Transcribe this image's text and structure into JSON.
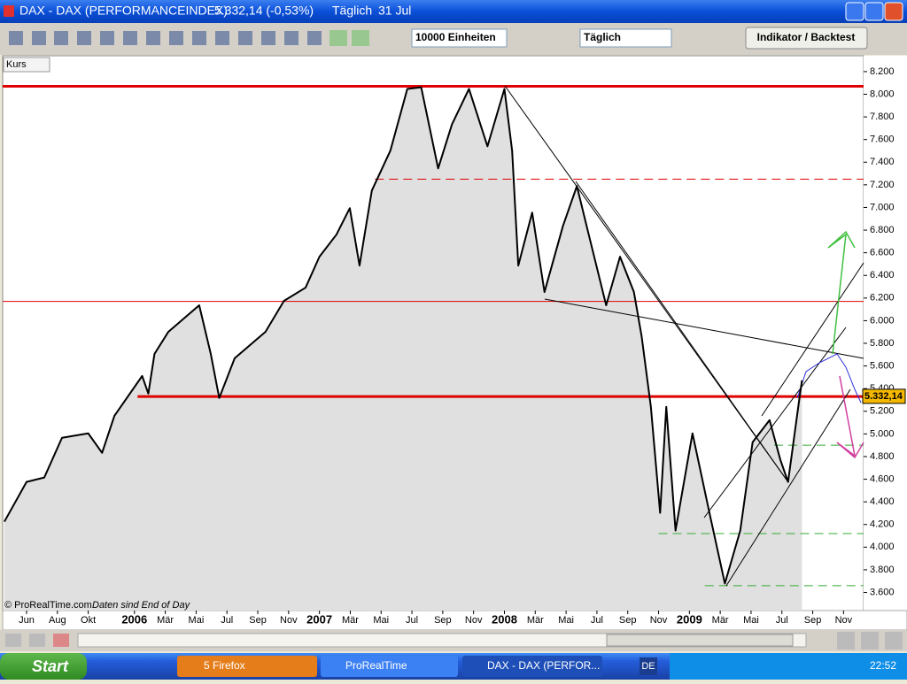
{
  "window": {
    "title": "DAX - DAX (PERFORMANCEINDEX)",
    "quote": "5.332,14 (-0,53%)",
    "period": "Täglich",
    "date": "31 Jul"
  },
  "toolbar": {
    "units": "10000 Einheiten",
    "interval": "Täglich",
    "button": "Indikator / Backtest"
  },
  "chart_data": {
    "type": "line",
    "panel_label": "Kurs",
    "footer": "© ProRealTime.com",
    "footer_note": "Daten sind End of Day",
    "x": [
      -1.44,
      0,
      1.15,
      2.3,
      4.0,
      4.9,
      5.7,
      7.5,
      7.9,
      8.3,
      9.2,
      11.2,
      11.95,
      12.5,
      13.5,
      15.5,
      16.7,
      18.1,
      19.0,
      20.1,
      20.97,
      21.6,
      22.4,
      23.6,
      24.7,
      25.6,
      26.7,
      27.6,
      28.7,
      29.9,
      31.0,
      31.5,
      31.9,
      32.8,
      33.6,
      34.8,
      35.7,
      36.4,
      37.6,
      38.5,
      39.4,
      39.9,
      40.5,
      41.1,
      41.5,
      42.1,
      43.2,
      44.3,
      45.3,
      46.3,
      47.1,
      48.2,
      48.9,
      49.4,
      50.1,
      50.3
    ],
    "values": [
      4225,
      4576,
      4615,
      4966,
      5005,
      4833,
      5160,
      5512,
      5356,
      5707,
      5902,
      6136,
      5707,
      5317,
      5668,
      5902,
      6175,
      6292,
      6565,
      6760,
      6994,
      6487,
      7150,
      7501,
      8047,
      8062,
      7345,
      7735,
      8047,
      7540,
      8047,
      7501,
      6487,
      6955,
      6253,
      6838,
      7189,
      6799,
      6136,
      6565,
      6253,
      5863,
      5239,
      4303,
      5239,
      4147,
      5005,
      4303,
      3679,
      4147,
      4927,
      5122,
      4771,
      4576,
      5278,
      5473
    ],
    "color": "#000000",
    "area_color": "#e0e0e0",
    "last_price": {
      "value": 5332.14,
      "label": "5.332,14"
    },
    "levels": [
      {
        "value": 8070,
        "x_start": -1.55,
        "color": "#e00000",
        "width": 3,
        "dashed": false
      },
      {
        "value": 7250,
        "x_start": 22.6,
        "color": "#e00000",
        "width": 1,
        "dashed": true
      },
      {
        "value": 6170,
        "x_start": -1.55,
        "color": "#e00000",
        "width": 1,
        "dashed": false
      },
      {
        "value": 5330,
        "x_start": 7.2,
        "color": "#e00000",
        "width": 3,
        "dashed": false
      },
      {
        "value": 4900,
        "x_start": 48.5,
        "color": "#33aa33",
        "width": 1,
        "dashed": true
      },
      {
        "value": 4120,
        "x_start": 41.0,
        "color": "#33aa33",
        "width": 1,
        "dashed": true
      },
      {
        "value": 3660,
        "x_start": 44.0,
        "color": "#33aa33",
        "width": 1,
        "dashed": true
      }
    ],
    "xlim": [
      -1.55,
      54.3
    ],
    "ylim": [
      3440,
      8340
    ],
    "xticks": [
      {
        "value": 0,
        "label": "Jun"
      },
      {
        "value": 2,
        "label": "Aug"
      },
      {
        "value": 4,
        "label": "Okt"
      },
      {
        "value": 7,
        "label": "2006"
      },
      {
        "value": 9,
        "label": "Mär"
      },
      {
        "value": 11,
        "label": "Mai"
      },
      {
        "value": 13,
        "label": "Jul"
      },
      {
        "value": 15,
        "label": "Sep"
      },
      {
        "value": 17,
        "label": "Nov"
      },
      {
        "value": 19,
        "label": "2007"
      },
      {
        "value": 21,
        "label": "Mär"
      },
      {
        "value": 23,
        "label": "Mai"
      },
      {
        "value": 25,
        "label": "Jul"
      },
      {
        "value": 27,
        "label": "Sep"
      },
      {
        "value": 29,
        "label": "Nov"
      },
      {
        "value": 31,
        "label": "2008"
      },
      {
        "value": 33,
        "label": "Mär"
      },
      {
        "value": 35,
        "label": "Mai"
      },
      {
        "value": 37,
        "label": "Jul"
      },
      {
        "value": 39,
        "label": "Sep"
      },
      {
        "value": 41,
        "label": "Nov"
      },
      {
        "value": 43,
        "label": "2009"
      },
      {
        "value": 45,
        "label": "Mär"
      },
      {
        "value": 47,
        "label": "Mai"
      },
      {
        "value": 49,
        "label": "Jul"
      },
      {
        "value": 51,
        "label": "Sep"
      },
      {
        "value": 53,
        "label": "Nov"
      }
    ],
    "yticks": [
      {
        "value": 3600,
        "label": "3.600"
      },
      {
        "value": 3800,
        "label": "3.800"
      },
      {
        "value": 4000,
        "label": "4.000"
      },
      {
        "value": 4200,
        "label": "4.200"
      },
      {
        "value": 4400,
        "label": "4.400"
      },
      {
        "value": 4600,
        "label": "4.600"
      },
      {
        "value": 4800,
        "label": "4.800"
      },
      {
        "value": 5000,
        "label": "5.000"
      },
      {
        "value": 5200,
        "label": "5.200"
      },
      {
        "value": 5400,
        "label": "5.400"
      },
      {
        "value": 5600,
        "label": "5.600"
      },
      {
        "value": 5800,
        "label": "5.800"
      },
      {
        "value": 6000,
        "label": "6.000"
      },
      {
        "value": 6200,
        "label": "6.200"
      },
      {
        "value": 6400,
        "label": "6.400"
      },
      {
        "value": 6600,
        "label": "6.600"
      },
      {
        "value": 6800,
        "label": "6.800"
      },
      {
        "value": 7000,
        "label": "7.000"
      },
      {
        "value": 7200,
        "label": "7.200"
      },
      {
        "value": 7400,
        "label": "7.400"
      },
      {
        "value": 7600,
        "label": "7.600"
      },
      {
        "value": 7800,
        "label": "7.800"
      },
      {
        "value": 8000,
        "label": "8.000"
      },
      {
        "value": 8200,
        "label": "8.200"
      }
    ]
  },
  "taskbar": {
    "start": "Start",
    "tasks": [
      "5 Firefox",
      "ProRealTime",
      "DAX - DAX (PERFOR..."
    ],
    "language": "DE",
    "clock": "22:52"
  }
}
